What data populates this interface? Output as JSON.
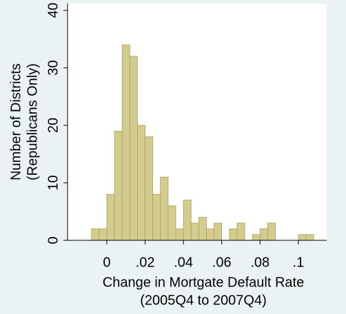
{
  "chart_data": {
    "type": "histogram",
    "x_label": [
      "Change in Mortgate Default Rate",
      "(2005Q4 to 2007Q4)"
    ],
    "y_label": [
      "Number of Districts",
      "(Republicans Only)"
    ],
    "bins": [
      -0.008,
      -0.004,
      0,
      0.004,
      0.008,
      0.012,
      0.016,
      0.02,
      0.024,
      0.028,
      0.032,
      0.036,
      0.04,
      0.044,
      0.048,
      0.052,
      0.056,
      0.06,
      0.064,
      0.068,
      0.072,
      0.076,
      0.08,
      0.084,
      0.088,
      0.092,
      0.096,
      0.1,
      0.104,
      0.108
    ],
    "values": [
      2,
      2,
      8,
      19,
      34,
      32,
      20,
      18,
      8,
      11,
      6,
      2,
      7,
      3,
      4,
      2,
      3,
      0,
      2,
      3,
      0,
      1,
      2,
      3,
      0,
      0,
      0,
      1,
      1
    ],
    "color": "#d4cc8e",
    "xlim": [
      -0.0205,
      0.1148
    ],
    "xticks": [
      0,
      {
        "value": 0.02,
        "label": ".02"
      },
      {
        "value": 0.04,
        "label": ".04"
      },
      {
        "value": 0.06,
        "label": ".06"
      },
      {
        "value": 0.08,
        "label": ".08"
      },
      {
        "value": 0.1,
        "label": ".1"
      }
    ],
    "ylim": [
      0,
      41.2
    ],
    "yticks": [
      0,
      10,
      20,
      30,
      40
    ]
  }
}
